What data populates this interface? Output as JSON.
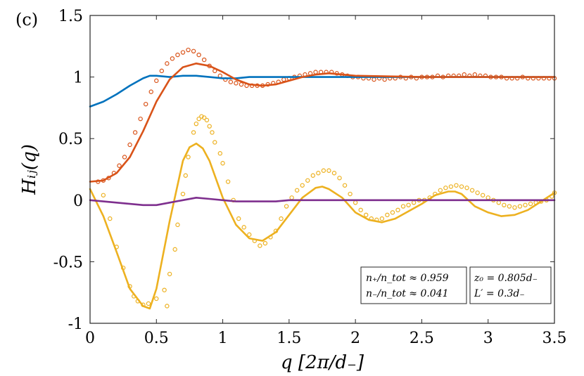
{
  "chart_data": {
    "type": "line",
    "panel_label": "(c)",
    "xlabel": "q [2π/d₋]",
    "ylabel": "Hᵢⱼ(q)",
    "xlim": [
      0,
      3.5
    ],
    "ylim": [
      -1,
      1.5
    ],
    "xticks": [
      "0",
      "0.5",
      "1",
      "1.5",
      "2",
      "2.5",
      "3",
      "3.5"
    ],
    "xtick_values": [
      0,
      0.5,
      1,
      1.5,
      2,
      2.5,
      3,
      3.5
    ],
    "yticks": [
      "-1",
      "-0.5",
      "0",
      "0.5",
      "1",
      "1.5"
    ],
    "ytick_values": [
      -1,
      -0.5,
      0,
      0.5,
      1,
      1.5
    ],
    "grid": false,
    "series": [
      {
        "name": "blue line",
        "style": "line",
        "color": "#0072BD",
        "x": [
          0.0,
          0.1,
          0.2,
          0.3,
          0.4,
          0.45,
          0.5,
          0.6,
          0.7,
          0.8,
          0.9,
          1.0,
          1.1,
          1.2,
          1.3,
          1.5,
          1.7,
          2.0,
          2.5,
          3.0,
          3.5
        ],
        "y": [
          0.76,
          0.8,
          0.86,
          0.93,
          0.99,
          1.01,
          1.01,
          1.0,
          1.01,
          1.01,
          1.0,
          0.99,
          0.99,
          1.0,
          1.0,
          1.0,
          1.0,
          1.0,
          1.0,
          1.0,
          1.0
        ]
      },
      {
        "name": "red line",
        "style": "line",
        "color": "#D95319",
        "x": [
          0.0,
          0.1,
          0.2,
          0.3,
          0.4,
          0.5,
          0.6,
          0.7,
          0.8,
          0.9,
          1.0,
          1.1,
          1.2,
          1.3,
          1.4,
          1.5,
          1.6,
          1.7,
          1.8,
          1.9,
          2.0,
          2.5,
          3.0,
          3.5
        ],
        "y": [
          0.15,
          0.16,
          0.22,
          0.35,
          0.56,
          0.8,
          0.98,
          1.08,
          1.11,
          1.09,
          1.04,
          0.98,
          0.94,
          0.93,
          0.94,
          0.97,
          1.0,
          1.02,
          1.03,
          1.02,
          1.01,
          1.0,
          1.0,
          1.0
        ]
      },
      {
        "name": "yellow line",
        "style": "line",
        "color": "#EDB120",
        "x": [
          0.0,
          0.1,
          0.2,
          0.3,
          0.4,
          0.45,
          0.5,
          0.6,
          0.7,
          0.75,
          0.8,
          0.85,
          0.9,
          1.0,
          1.1,
          1.2,
          1.3,
          1.4,
          1.5,
          1.6,
          1.7,
          1.75,
          1.8,
          1.9,
          2.0,
          2.1,
          2.2,
          2.3,
          2.5,
          2.6,
          2.7,
          2.75,
          2.8,
          2.9,
          3.0,
          3.1,
          3.2,
          3.3,
          3.4,
          3.5
        ],
        "y": [
          0.09,
          -0.13,
          -0.42,
          -0.72,
          -0.86,
          -0.88,
          -0.72,
          -0.17,
          0.32,
          0.43,
          0.46,
          0.42,
          0.32,
          0.02,
          -0.2,
          -0.31,
          -0.33,
          -0.26,
          -0.12,
          0.02,
          0.1,
          0.11,
          0.09,
          0.02,
          -0.1,
          -0.16,
          -0.18,
          -0.15,
          -0.03,
          0.04,
          0.07,
          0.07,
          0.05,
          -0.05,
          -0.1,
          -0.13,
          -0.12,
          -0.08,
          -0.01,
          0.06
        ]
      },
      {
        "name": "purple line",
        "style": "line",
        "color": "#7E2F8E",
        "x": [
          0.0,
          0.1,
          0.2,
          0.3,
          0.4,
          0.5,
          0.6,
          0.7,
          0.8,
          0.9,
          1.0,
          1.1,
          1.2,
          1.3,
          1.4,
          1.5,
          2.0,
          2.5,
          3.0,
          3.5
        ],
        "y": [
          0.0,
          -0.01,
          -0.02,
          -0.03,
          -0.04,
          -0.04,
          -0.02,
          0.0,
          0.02,
          0.01,
          0.0,
          -0.01,
          -0.01,
          -0.01,
          -0.01,
          0.0,
          0.0,
          0.0,
          0.0,
          0.0
        ]
      },
      {
        "name": "red circles",
        "style": "markers",
        "color": "#D95319",
        "x": [
          0.06,
          0.1,
          0.14,
          0.18,
          0.22,
          0.26,
          0.3,
          0.34,
          0.38,
          0.42,
          0.46,
          0.5,
          0.54,
          0.58,
          0.62,
          0.66,
          0.7,
          0.74,
          0.78,
          0.82,
          0.86,
          0.9,
          0.94,
          0.98,
          1.02,
          1.06,
          1.1,
          1.14,
          1.18,
          1.22,
          1.26,
          1.3,
          1.34,
          1.38,
          1.42,
          1.46,
          1.5,
          1.54,
          1.58,
          1.62,
          1.66,
          1.7,
          1.74,
          1.78,
          1.82,
          1.86,
          1.9,
          1.94,
          1.98,
          2.02,
          2.06,
          2.1,
          2.14,
          2.18,
          2.22,
          2.26,
          2.3,
          2.34,
          2.38,
          2.42,
          2.46,
          2.5,
          2.54,
          2.58,
          2.62,
          2.66,
          2.7,
          2.74,
          2.78,
          2.82,
          2.86,
          2.9,
          2.94,
          2.98,
          3.02,
          3.06,
          3.1,
          3.14,
          3.18,
          3.22,
          3.26,
          3.3,
          3.34,
          3.38,
          3.42,
          3.46,
          3.5
        ],
        "y": [
          0.15,
          0.16,
          0.18,
          0.22,
          0.28,
          0.35,
          0.45,
          0.55,
          0.66,
          0.78,
          0.88,
          0.97,
          1.05,
          1.11,
          1.15,
          1.18,
          1.2,
          1.22,
          1.21,
          1.18,
          1.14,
          1.09,
          1.05,
          1.01,
          0.98,
          0.96,
          0.95,
          0.94,
          0.93,
          0.93,
          0.93,
          0.93,
          0.94,
          0.95,
          0.96,
          0.98,
          0.99,
          1.0,
          1.01,
          1.02,
          1.03,
          1.04,
          1.04,
          1.04,
          1.04,
          1.03,
          1.02,
          1.01,
          1.0,
          1.0,
          0.99,
          0.99,
          0.98,
          0.99,
          0.98,
          0.99,
          0.99,
          1.0,
          0.99,
          1.0,
          0.99,
          1.0,
          1.0,
          1.0,
          1.01,
          1.0,
          1.01,
          1.01,
          1.01,
          1.02,
          1.01,
          1.02,
          1.01,
          1.01,
          1.0,
          1.0,
          1.0,
          0.99,
          0.99,
          0.99,
          1.0,
          0.99,
          0.99,
          0.99,
          0.99,
          0.99,
          0.99
        ]
      },
      {
        "name": "yellow circles",
        "style": "markers",
        "color": "#EDB120",
        "x": [
          0.1,
          0.15,
          0.2,
          0.25,
          0.3,
          0.33,
          0.36,
          0.4,
          0.44,
          0.5,
          0.56,
          0.58,
          0.6,
          0.64,
          0.66,
          0.7,
          0.72,
          0.74,
          0.78,
          0.8,
          0.82,
          0.84,
          0.86,
          0.88,
          0.9,
          0.92,
          0.94,
          0.98,
          1.0,
          1.04,
          1.08,
          1.12,
          1.16,
          1.2,
          1.24,
          1.28,
          1.32,
          1.36,
          1.4,
          1.44,
          1.48,
          1.52,
          1.56,
          1.6,
          1.64,
          1.68,
          1.72,
          1.76,
          1.8,
          1.84,
          1.88,
          1.92,
          1.96,
          2.0,
          2.04,
          2.08,
          2.12,
          2.16,
          2.2,
          2.24,
          2.28,
          2.32,
          2.36,
          2.4,
          2.44,
          2.48,
          2.52,
          2.56,
          2.6,
          2.64,
          2.68,
          2.72,
          2.76,
          2.8,
          2.84,
          2.88,
          2.92,
          2.96,
          3.0,
          3.04,
          3.08,
          3.12,
          3.16,
          3.2,
          3.24,
          3.28,
          3.32,
          3.36,
          3.4,
          3.44,
          3.48,
          3.5
        ],
        "y": [
          0.04,
          -0.15,
          -0.38,
          -0.55,
          -0.7,
          -0.78,
          -0.82,
          -0.85,
          -0.84,
          -0.8,
          -0.73,
          -0.86,
          -0.6,
          -0.4,
          -0.2,
          0.05,
          0.2,
          0.35,
          0.55,
          0.62,
          0.66,
          0.68,
          0.67,
          0.65,
          0.6,
          0.55,
          0.47,
          0.38,
          0.3,
          0.15,
          0.0,
          -0.15,
          -0.22,
          -0.28,
          -0.33,
          -0.37,
          -0.35,
          -0.3,
          -0.25,
          -0.15,
          -0.05,
          0.02,
          0.08,
          0.12,
          0.16,
          0.2,
          0.22,
          0.24,
          0.24,
          0.22,
          0.18,
          0.12,
          0.05,
          -0.02,
          -0.08,
          -0.12,
          -0.15,
          -0.16,
          -0.15,
          -0.12,
          -0.1,
          -0.08,
          -0.05,
          -0.04,
          -0.02,
          0.0,
          0.0,
          0.02,
          0.05,
          0.08,
          0.1,
          0.11,
          0.12,
          0.11,
          0.1,
          0.08,
          0.06,
          0.04,
          0.02,
          0.0,
          -0.02,
          -0.04,
          -0.05,
          -0.06,
          -0.05,
          -0.04,
          -0.03,
          -0.02,
          -0.01,
          0.0,
          0.03,
          0.06
        ]
      }
    ],
    "annotations": [
      {
        "lines": [
          "n₊/n_tot ≈ 0.959",
          "n₋/n_tot ≈ 0.041"
        ]
      },
      {
        "lines": [
          "z₀ = 0.805d₋",
          "L′ = 0.3d₋"
        ]
      }
    ]
  }
}
